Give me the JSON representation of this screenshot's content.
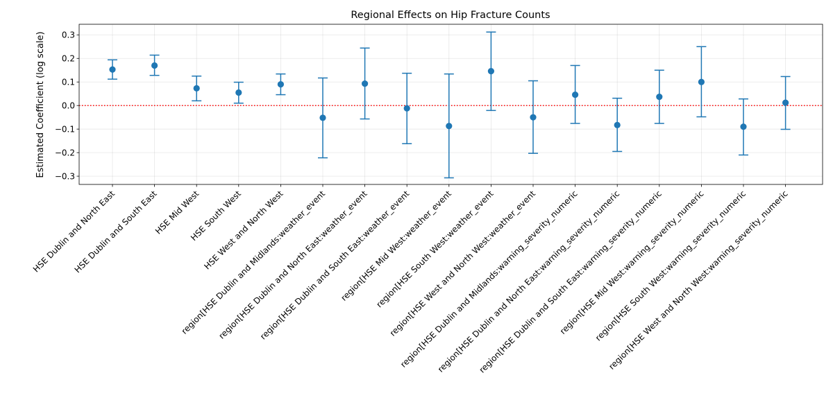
{
  "chart_data": {
    "type": "scatter",
    "subtype": "errorbar",
    "title": "Regional Effects on Hip Fracture Counts",
    "xlabel": "",
    "ylabel": "Estimated Coefficient (log scale)",
    "ylim": [
      -0.335,
      0.345
    ],
    "yticks": [
      -0.3,
      -0.2,
      -0.1,
      0.0,
      0.1,
      0.2,
      0.3
    ],
    "ytick_labels": [
      "−0.3",
      "−0.2",
      "−0.1",
      "0.0",
      "0.1",
      "0.2",
      "0.3"
    ],
    "grid": true,
    "reference_line": {
      "y": 0,
      "color": "#ff0000",
      "style": "dotted"
    },
    "marker_color": "#1f77b4",
    "categories": [
      "HSE Dublin and North East",
      "HSE Dublin and South East",
      "HSE Mid West",
      "HSE South West",
      "HSE West and North West",
      "region[HSE Dublin and Midlands:weather_event",
      "region[HSE Dublin and North East:weather_event",
      "region[HSE Dublin and South East:weather_event",
      "region[HSE Mid West:weather_event",
      "region[HSE South West:weather_event",
      "region[HSE West and North West:weather_event",
      "region[HSE Dublin and Midlands:warning_severity_numeric",
      "region[HSE Dublin and North East:warning_severity_numeric",
      "region[HSE Dublin and South East:warning_severity_numeric",
      "region[HSE Mid West:warning_severity_numeric",
      "region[HSE South West:warning_severity_numeric",
      "region[HSE West and North West:warning_severity_numeric"
    ],
    "values": [
      0.153,
      0.17,
      0.073,
      0.055,
      0.09,
      -0.052,
      0.093,
      -0.012,
      -0.087,
      0.146,
      -0.05,
      0.046,
      -0.083,
      0.037,
      0.1,
      -0.09,
      0.012
    ],
    "lower": [
      0.112,
      0.128,
      0.02,
      0.01,
      0.046,
      -0.222,
      -0.057,
      -0.162,
      -0.307,
      -0.021,
      -0.203,
      -0.076,
      -0.195,
      -0.076,
      -0.048,
      -0.21,
      -0.101
    ],
    "upper": [
      0.194,
      0.214,
      0.125,
      0.099,
      0.134,
      0.117,
      0.244,
      0.137,
      0.134,
      0.312,
      0.105,
      0.17,
      0.031,
      0.15,
      0.25,
      0.028,
      0.123
    ]
  }
}
